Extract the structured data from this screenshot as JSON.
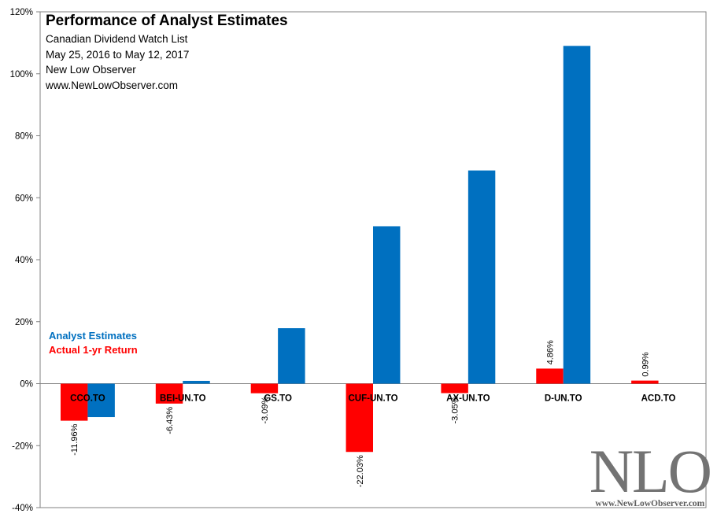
{
  "chart_data": {
    "type": "bar",
    "title": "Performance of Analyst Estimates",
    "subtitle_lines": [
      "Canadian Dividend Watch List",
      "May 25, 2016 to May 12, 2017",
      "New Low Observer",
      "www.NewLowObserver.com"
    ],
    "categories": [
      "CCO.TO",
      "BEI-UN.TO",
      "GS.TO",
      "CUF-UN.TO",
      "AX-UN.TO",
      "D-UN.TO",
      "ACD.TO"
    ],
    "series": [
      {
        "name": "Actual 1-yr Return",
        "color": "#ff0000",
        "values": [
          -11.96,
          -6.43,
          -3.09,
          -22.03,
          -3.05,
          4.86,
          0.99
        ],
        "labels": [
          "-11.96%",
          "-6.43%",
          "-3.09%",
          "-22.03%",
          "-3.05%",
          "4.86%",
          "0.99%"
        ]
      },
      {
        "name": "Analyst Estimates",
        "color": "#0070c0",
        "values": [
          -10.8,
          0.9,
          17.9,
          50.8,
          68.8,
          109.0,
          0
        ]
      }
    ],
    "ylim": [
      -40,
      120
    ],
    "yticks": [
      -40,
      -20,
      0,
      20,
      40,
      60,
      80,
      100,
      120
    ],
    "ytick_labels": [
      "-40%",
      "-20%",
      "0%",
      "20%",
      "40%",
      "60%",
      "80%",
      "100%",
      "120%"
    ],
    "xlabel": "",
    "ylabel": "",
    "legend_position": "middle-left",
    "grid": false
  },
  "legend": {
    "estimates_label": "Analyst Estimates",
    "actual_label": "Actual 1-yr Return",
    "estimates_color": "#0070c0",
    "actual_color": "#ff0000"
  },
  "watermark": {
    "logo": "NLO",
    "url": "www.NewLowObserver.com"
  }
}
